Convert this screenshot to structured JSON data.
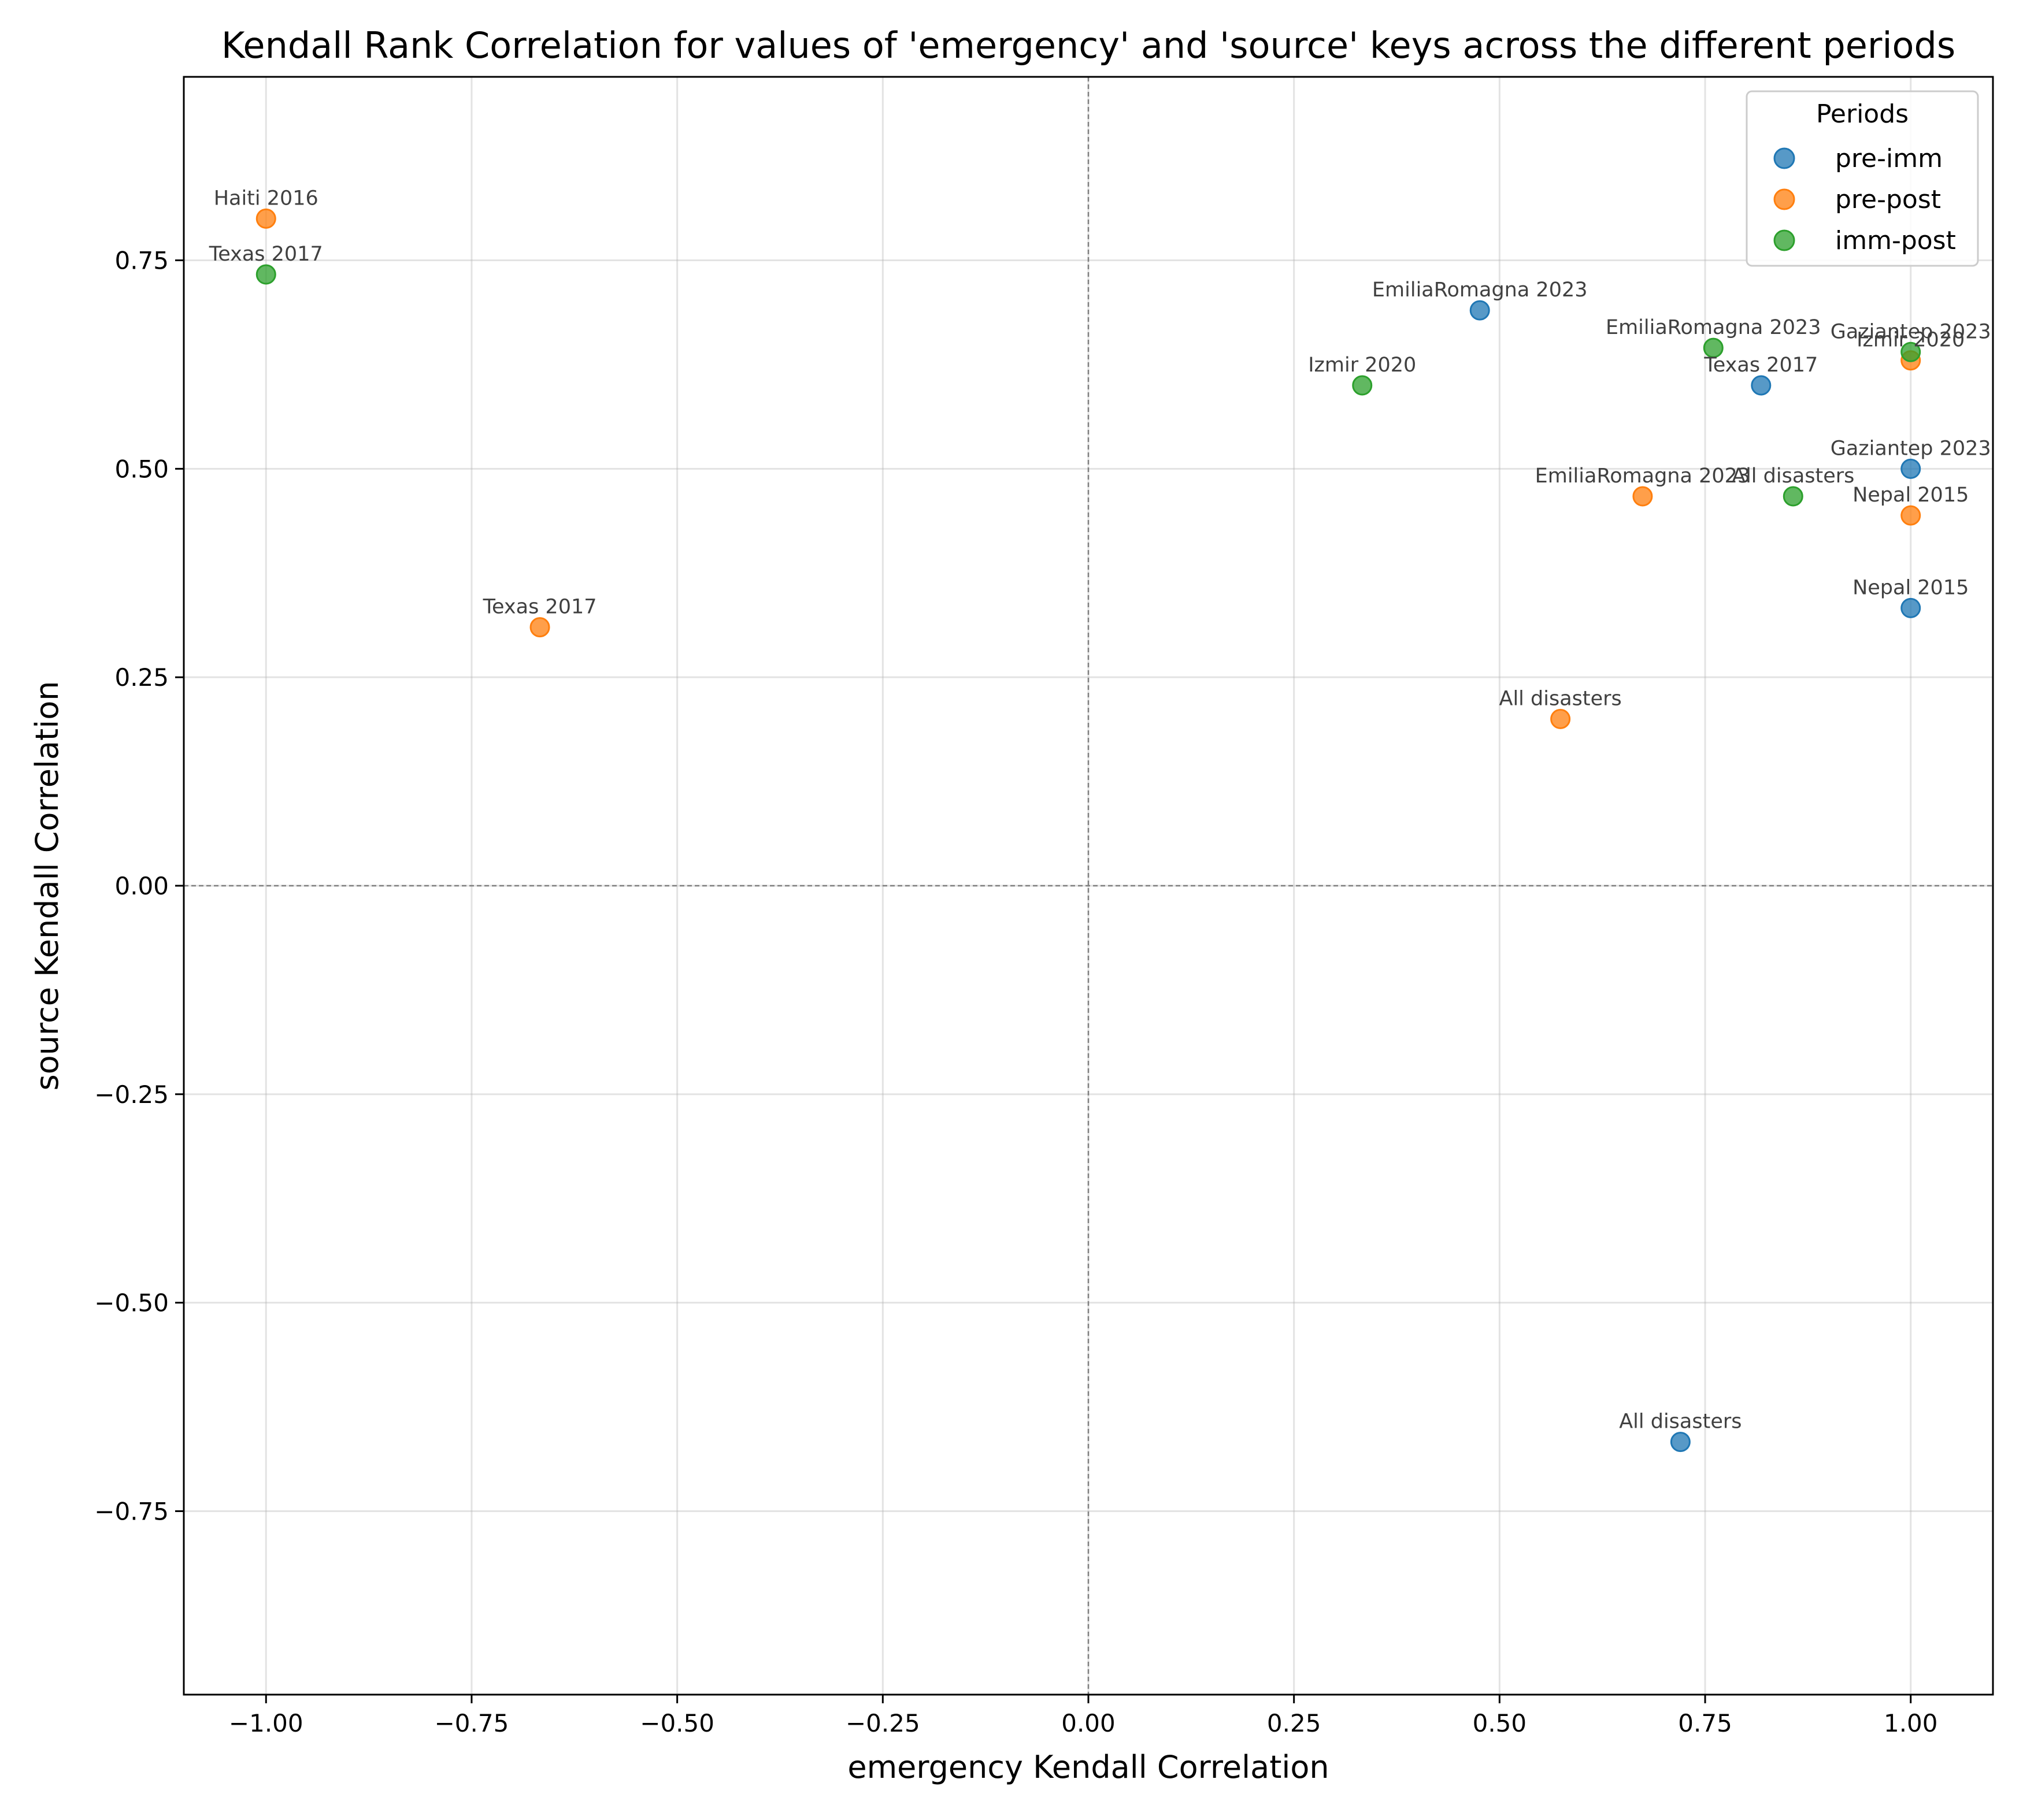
{
  "chart_data": {
    "type": "scatter",
    "title": "Kendall Rank Correlation for values of 'emergency' and 'source' keys across the different periods",
    "xlabel": "emergency Kendall Correlation",
    "ylabel": "source Kendall Correlation",
    "xlim": [
      -1.1,
      1.1
    ],
    "ylim": [
      -0.97,
      0.97
    ],
    "xticks": [
      -1.0,
      -0.75,
      -0.5,
      -0.25,
      0.0,
      0.25,
      0.5,
      0.75,
      1.0
    ],
    "xtick_labels": [
      "−1.00",
      "−0.75",
      "−0.50",
      "−0.25",
      "0.00",
      "0.25",
      "0.50",
      "0.75",
      "1.00"
    ],
    "yticks": [
      -0.75,
      -0.5,
      -0.25,
      0.0,
      0.25,
      0.5,
      0.75
    ],
    "ytick_labels": [
      "−0.75",
      "−0.50",
      "−0.25",
      "0.00",
      "0.25",
      "0.50",
      "0.75"
    ],
    "grid": true,
    "zero_lines": true,
    "legend": {
      "title": "Periods",
      "placement": "top-right"
    },
    "series": [
      {
        "name": "pre-imm",
        "color": "#1f77b4",
        "points": [
          {
            "label": "EmiliaRomagna 2023",
            "x": 0.476,
            "y": 0.69
          },
          {
            "label": "Texas 2017",
            "x": 0.818,
            "y": 0.6
          },
          {
            "label": "Gaziantep 2023",
            "x": 1.0,
            "y": 0.5
          },
          {
            "label": "Nepal 2015",
            "x": 1.0,
            "y": 0.333
          },
          {
            "label": "All disasters",
            "x": 0.72,
            "y": -0.667
          }
        ]
      },
      {
        "name": "pre-post",
        "color": "#ff7f0e",
        "points": [
          {
            "label": "Haiti 2016",
            "x": -1.0,
            "y": 0.8
          },
          {
            "label": "Izmir 2020",
            "x": 1.0,
            "y": 0.63
          },
          {
            "label": "EmiliaRomagna 2023",
            "x": 0.674,
            "y": 0.467
          },
          {
            "label": "Nepal 2015",
            "x": 1.0,
            "y": 0.444
          },
          {
            "label": "Texas 2017",
            "x": -0.667,
            "y": 0.31
          },
          {
            "label": "All disasters",
            "x": 0.574,
            "y": 0.2
          }
        ]
      },
      {
        "name": "imm-post",
        "color": "#2ca02c",
        "points": [
          {
            "label": "Texas 2017",
            "x": -1.0,
            "y": 0.733
          },
          {
            "label": "EmiliaRomagna 2023",
            "x": 0.76,
            "y": 0.645
          },
          {
            "label": "Gaziantep 2023",
            "x": 1.0,
            "y": 0.64
          },
          {
            "label": "Izmir 2020",
            "x": 0.333,
            "y": 0.6
          },
          {
            "label": "All disasters",
            "x": 0.857,
            "y": 0.467
          }
        ]
      }
    ]
  }
}
